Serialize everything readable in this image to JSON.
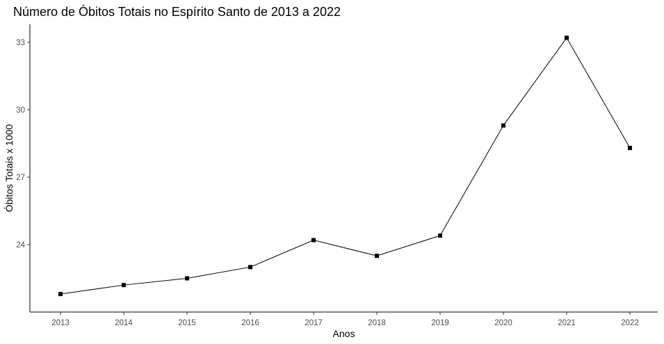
{
  "chart_data": {
    "type": "line",
    "title": "Número de Óbitos Totais no Espírito Santo de 2013 a 2022",
    "xlabel": "Anos",
    "ylabel": "Óbitos Totais x 1000",
    "categories": [
      "2013",
      "2014",
      "2015",
      "2016",
      "2017",
      "2018",
      "2019",
      "2020",
      "2021",
      "2022"
    ],
    "series": [
      {
        "values": [
          21.8,
          22.2,
          22.5,
          23.0,
          24.2,
          23.5,
          24.4,
          29.3,
          33.2,
          28.3
        ]
      }
    ],
    "y_ticks": [
      24,
      27,
      30,
      33
    ],
    "ylim": [
      21.0,
      33.8
    ],
    "grid": false,
    "legend": "none",
    "colors": {
      "line": "#000000",
      "point": "#000000",
      "tick_text": "#4d4d4d"
    }
  }
}
